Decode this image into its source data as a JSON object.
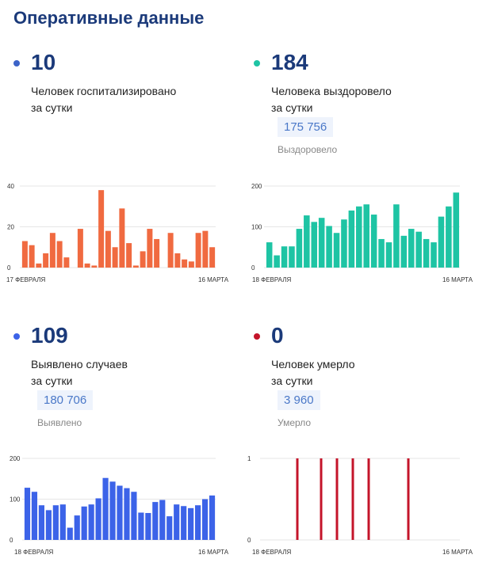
{
  "page_title": "Оперативные данные",
  "panels": [
    {
      "value": "10",
      "line1": "Человек госпитализировано",
      "line2": "за сутки",
      "total": "",
      "total_label": "",
      "color": "#f06a40",
      "dot_color": "#3c63c8"
    },
    {
      "value": "184",
      "line1": "Человека выздоровело",
      "line2": "за сутки",
      "total": "175 756",
      "total_label": "Выздоровело",
      "color": "#1ec4a4",
      "dot_color": "#1ec4a4"
    },
    {
      "value": "109",
      "line1": "Выявлено случаев",
      "line2": "за сутки",
      "total": "180 706",
      "total_label": "Выявлено",
      "color": "#3c63e8",
      "dot_color": "#3c63e8"
    },
    {
      "value": "0",
      "line1": "Человек умерло",
      "line2": "за сутки",
      "total": "3 960",
      "total_label": "Умерло",
      "color": "#c4142a",
      "dot_color": "#c4142a"
    }
  ],
  "chart_data": [
    {
      "type": "bar",
      "start_label": "17 ФЕВРАЛЯ",
      "end_label": "16 МАРТА",
      "yticks": [
        0,
        20,
        40
      ],
      "ylim": [
        0,
        40
      ],
      "values": [
        13,
        11,
        2,
        7,
        17,
        13,
        5,
        0,
        19,
        2,
        1,
        38,
        18,
        10,
        29,
        12,
        1,
        8,
        19,
        14,
        0,
        17,
        7,
        4,
        3,
        17,
        18,
        10
      ]
    },
    {
      "type": "bar",
      "start_label": "18 ФЕВРАЛЯ",
      "end_label": "16 МАРТА",
      "yticks": [
        0,
        100,
        200
      ],
      "ylim": [
        0,
        200
      ],
      "values": [
        62,
        30,
        52,
        52,
        95,
        128,
        112,
        122,
        102,
        85,
        118,
        140,
        150,
        155,
        130,
        70,
        62,
        155,
        78,
        95,
        88,
        70,
        62,
        125,
        150,
        184
      ]
    },
    {
      "type": "bar",
      "start_label": "18 ФЕВРАЛЯ",
      "end_label": "16 МАРТА",
      "yticks": [
        0,
        100,
        200
      ],
      "ylim": [
        0,
        200
      ],
      "values": [
        128,
        118,
        85,
        73,
        85,
        87,
        30,
        60,
        82,
        87,
        102,
        152,
        143,
        133,
        127,
        118,
        67,
        66,
        93,
        98,
        58,
        87,
        83,
        78,
        85,
        100,
        109
      ]
    },
    {
      "type": "bar",
      "start_label": "18 ФЕВРАЛЯ",
      "end_label": "16 МАРТА",
      "yticks": [
        0,
        1
      ],
      "ylim": [
        0,
        1
      ],
      "values": [
        0,
        0,
        0,
        0,
        1,
        0,
        0,
        1,
        0,
        1,
        0,
        1,
        0,
        1,
        0,
        0,
        0,
        0,
        1,
        0,
        0,
        0,
        0,
        0,
        0
      ]
    }
  ]
}
